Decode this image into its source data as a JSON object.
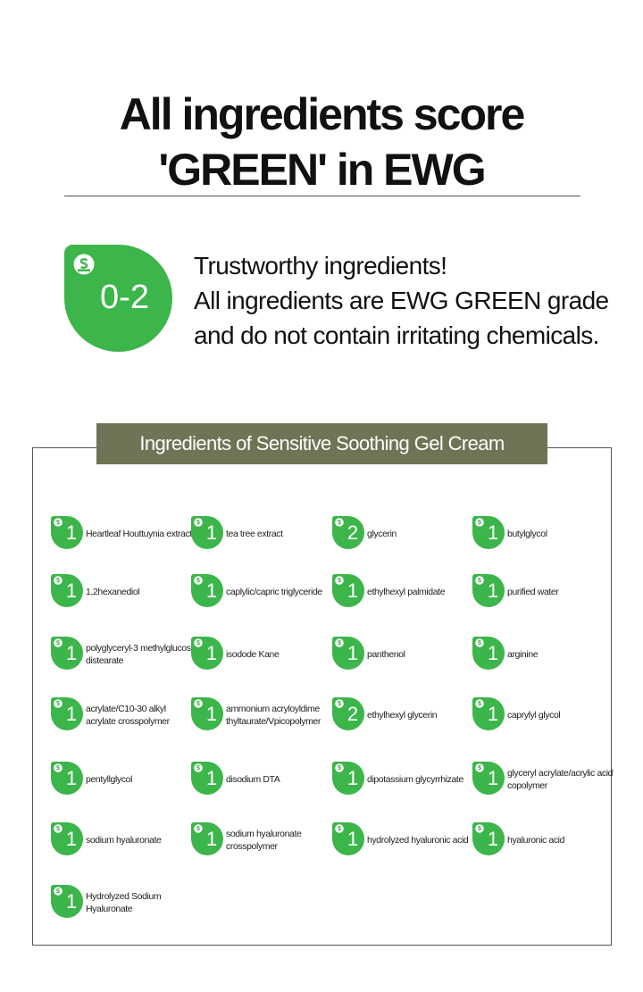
{
  "headline": {
    "line1": "All ingredients score",
    "line2": "'GREEN' in EWG"
  },
  "grade_badge": {
    "range": "0-2",
    "icon": "ewg-face-icon",
    "color": "#3cb54a"
  },
  "intro": {
    "line1": "Trustworthy ingredients!",
    "line2": "All ingredients are EWG GREEN grade",
    "line3": "and do not contain irritating chemicals."
  },
  "ingredients_panel": {
    "title": "Ingredients of Sensitive Soothing Gel Cream",
    "title_bar_color": "#6e7556",
    "items": [
      {
        "score": "1",
        "name": "Heartleaf Houttuynia extract"
      },
      {
        "score": "1",
        "name": "tea tree extract"
      },
      {
        "score": "2",
        "name": "glycerin"
      },
      {
        "score": "1",
        "name": "butylglycol"
      },
      {
        "score": "1",
        "name": "1,2hexanediol"
      },
      {
        "score": "1",
        "name": "caplylic/capric triglyceride"
      },
      {
        "score": "1",
        "name": "ethylhexyl palmidate"
      },
      {
        "score": "1",
        "name": "purified water"
      },
      {
        "score": "1",
        "name": "polyglyceryl-3 methylglucose distearate"
      },
      {
        "score": "1",
        "name": "isodode Kane"
      },
      {
        "score": "1",
        "name": "panthenol"
      },
      {
        "score": "1",
        "name": "arginine"
      },
      {
        "score": "1",
        "name": "acrylate/C10-30 alkyl acrylate crosspolymer"
      },
      {
        "score": "1",
        "name": "ammonium acryloyldime thyltaurate/Vpicopolymer"
      },
      {
        "score": "2",
        "name": "ethylhexyl glycerin"
      },
      {
        "score": "1",
        "name": "caprylyl glycol"
      },
      {
        "score": "1",
        "name": "pentyllglycol"
      },
      {
        "score": "1",
        "name": "disodium DTA"
      },
      {
        "score": "1",
        "name": "dipotassium glycyrrhizate"
      },
      {
        "score": "1",
        "name": "glyceryl acrylate/acrylic acid copolymer"
      },
      {
        "score": "1",
        "name": "sodium hyaluronate"
      },
      {
        "score": "1",
        "name": "sodium hyaluronate crosspolymer"
      },
      {
        "score": "1",
        "name": "hydrolyzed hyaluronic acid"
      },
      {
        "score": "1",
        "name": "hyaluronic acid"
      },
      {
        "score": "1",
        "name": "Hydrolyzed Sodium Hyaluronate"
      }
    ]
  }
}
